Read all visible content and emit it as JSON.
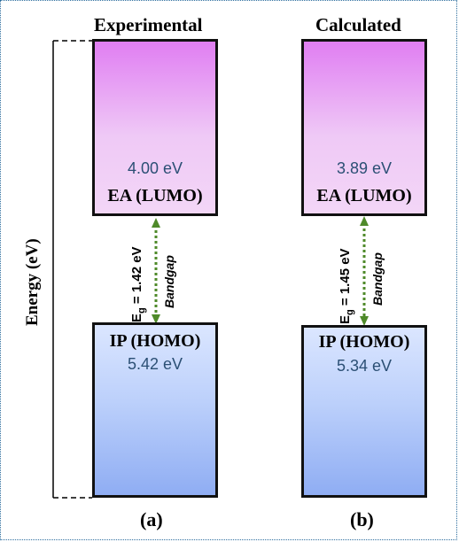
{
  "panels": [
    {
      "title": "Experimental",
      "lumo_value": "4.00 eV",
      "lumo_label": "EA (LUMO)",
      "homo_label": "IP (HOMO)",
      "homo_value": "5.42 eV",
      "eg_prefix": "E",
      "eg_sub": "g",
      "eg_value": " = 1.42 eV",
      "bandgap_label": "Bandgap",
      "panel_label": "(a)"
    },
    {
      "title": "Calculated",
      "lumo_value": "3.89 eV",
      "lumo_label": "EA (LUMO)",
      "homo_label": "IP (HOMO)",
      "homo_value": "5.34 eV",
      "eg_prefix": "E",
      "eg_sub": "g",
      "eg_value": " = 1.45 eV",
      "bandgap_label": "Bandgap",
      "panel_label": "(b)"
    }
  ],
  "energy_axis_label": "Energy (eV)",
  "colors": {
    "lumo_top": "#e07ef2",
    "lumo_bottom": "#f3d6f7",
    "homo_top": "#dbe6ff",
    "homo_bottom": "#8fadf3",
    "value_text": "#2b4f74",
    "arrow": "#4f8a2a"
  }
}
